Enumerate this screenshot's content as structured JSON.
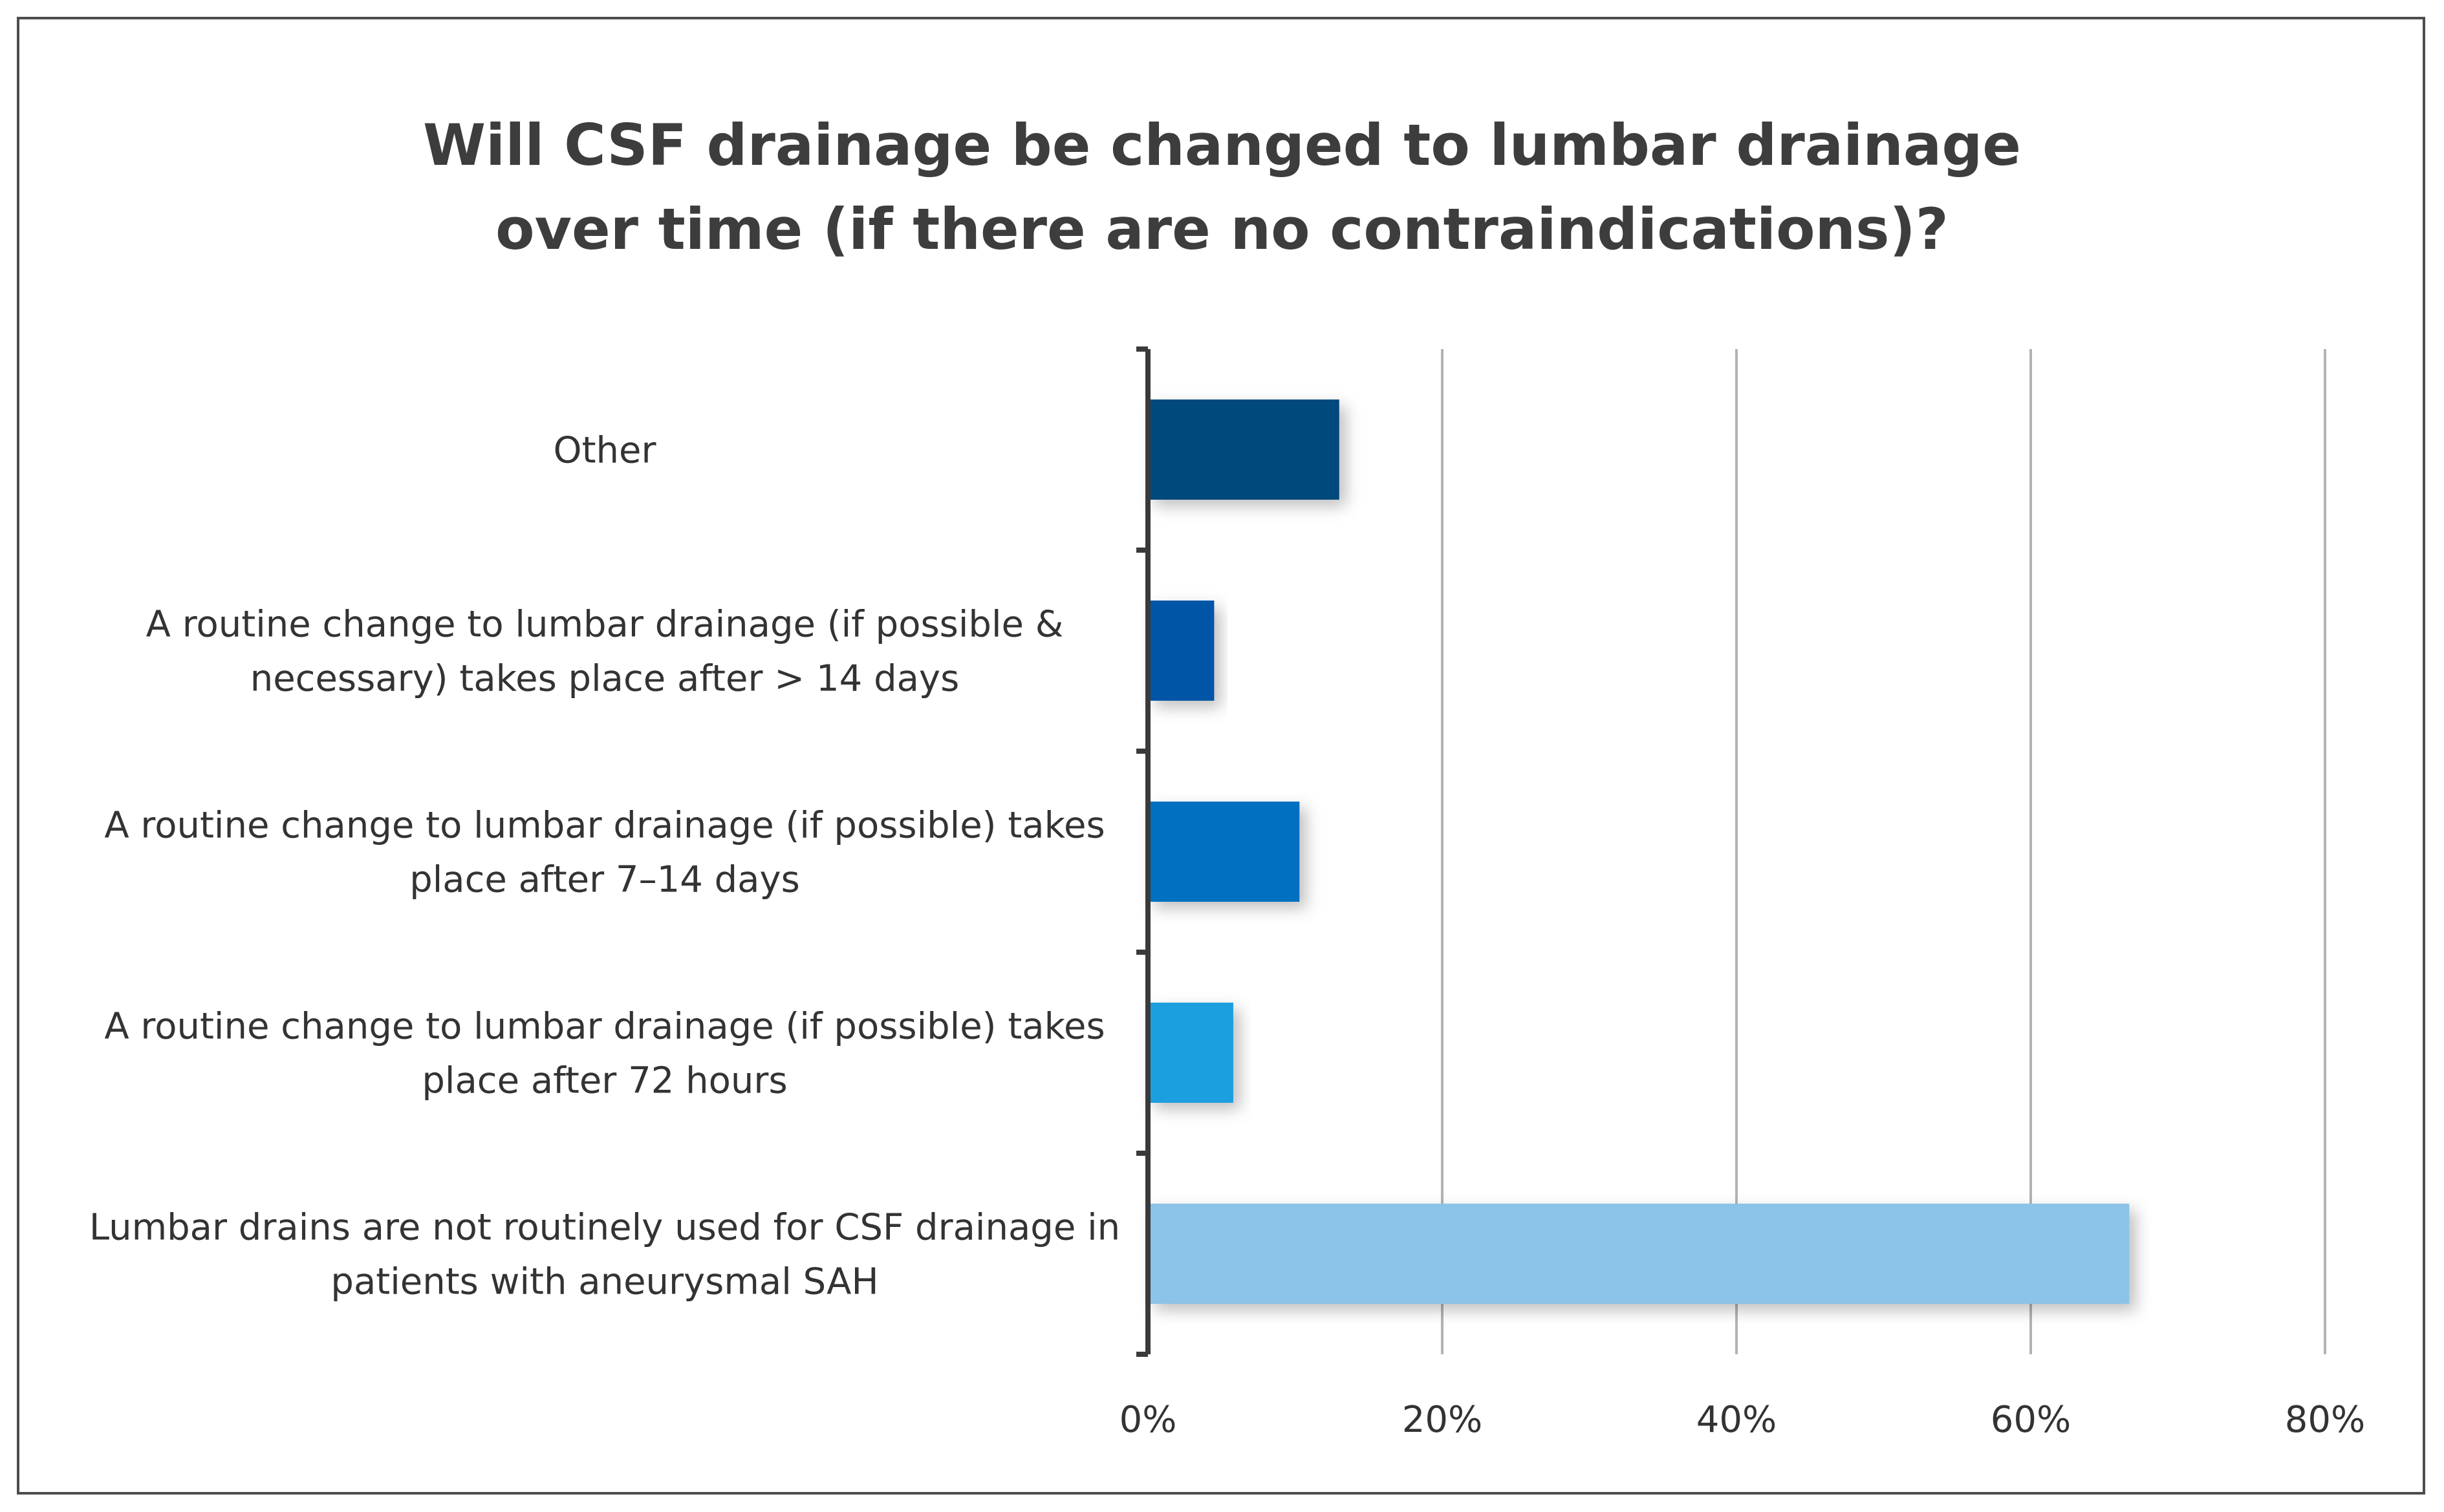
{
  "chart_data": {
    "type": "bar",
    "orientation": "horizontal",
    "title_lines": [
      "Will CSF drainage be changed to lumbar drainage",
      "over time (if there are no contraindications)?"
    ],
    "categories": [
      [
        "Other"
      ],
      [
        "A routine change to lumbar drainage (if possible &",
        "necessary) takes place after > 14 days"
      ],
      [
        "A routine change to lumbar drainage (if possible) takes",
        "place after 7–14 days"
      ],
      [
        "A routine change to lumbar drainage (if possible) takes",
        "place after 72 hours"
      ],
      [
        "Lumbar drains are not routinely used for CSF drainage in",
        "patients with aneurysmal SAH"
      ]
    ],
    "values": [
      13,
      4.5,
      10.3,
      5.8,
      66.7
    ],
    "colors": [
      "#004a7c",
      "#0054a6",
      "#0070c0",
      "#1f9fdf",
      "#8cc3e8"
    ],
    "xlim": [
      0,
      80
    ],
    "ticks": [
      0,
      20,
      40,
      60,
      80
    ],
    "tick_labels": [
      "0%",
      "20%",
      "40%",
      "60%",
      "80%"
    ],
    "grid": true,
    "xlabel": "",
    "ylabel": ""
  }
}
